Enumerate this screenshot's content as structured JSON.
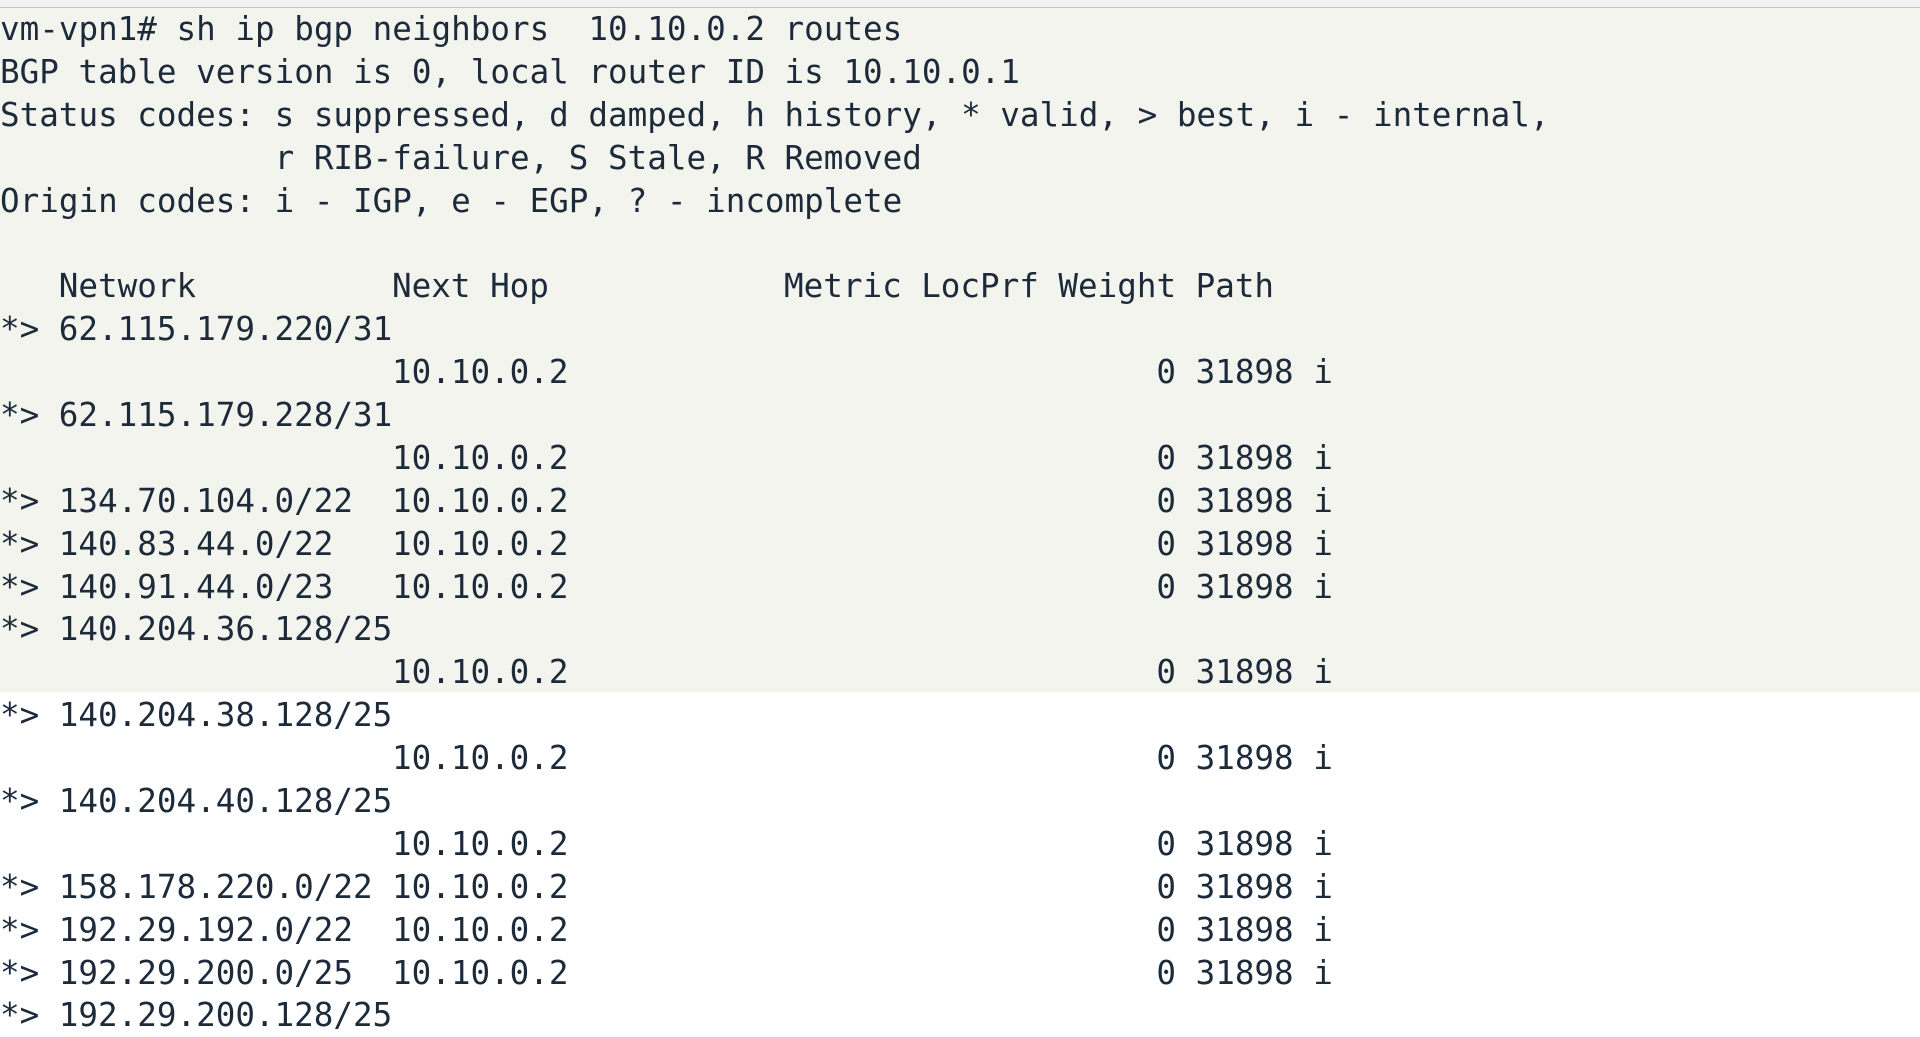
{
  "terminal": {
    "header_lines": [
      "vm-vpn1# sh ip bgp neighbors  10.10.0.2 routes",
      "BGP table version is 0, local router ID is 10.10.0.1",
      "Status codes: s suppressed, d damped, h history, * valid, > best, i - internal,",
      "              r RIB-failure, S Stale, R Removed",
      "Origin codes: i - IGP, e - EGP, ? - incomplete",
      ""
    ],
    "columns": {
      "network": "Network",
      "next_hop": "Next Hop",
      "metric": "Metric",
      "locprf": "LocPrf",
      "weight": "Weight",
      "path": "Path"
    },
    "routes": [
      {
        "status": "*>",
        "network": "62.115.179.220/31",
        "next_hop": "10.10.0.2",
        "weight": "0",
        "path": "31898 i",
        "wrapped": true
      },
      {
        "status": "*>",
        "network": "62.115.179.228/31",
        "next_hop": "10.10.0.2",
        "weight": "0",
        "path": "31898 i",
        "wrapped": true
      },
      {
        "status": "*>",
        "network": "134.70.104.0/22",
        "next_hop": "10.10.0.2",
        "weight": "0",
        "path": "31898 i",
        "wrapped": false
      },
      {
        "status": "*>",
        "network": "140.83.44.0/22",
        "next_hop": "10.10.0.2",
        "weight": "0",
        "path": "31898 i",
        "wrapped": false
      },
      {
        "status": "*>",
        "network": "140.91.44.0/23",
        "next_hop": "10.10.0.2",
        "weight": "0",
        "path": "31898 i",
        "wrapped": false
      },
      {
        "status": "*>",
        "network": "140.204.36.128/25",
        "next_hop": "10.10.0.2",
        "weight": "0",
        "path": "31898 i",
        "wrapped": true
      },
      {
        "status": "*>",
        "network": "140.204.38.128/25",
        "next_hop": "10.10.0.2",
        "weight": "0",
        "path": "31898 i",
        "wrapped": true
      },
      {
        "status": "*>",
        "network": "140.204.40.128/25",
        "next_hop": "10.10.0.2",
        "weight": "0",
        "path": "31898 i",
        "wrapped": true
      },
      {
        "status": "*>",
        "network": "158.178.220.0/22",
        "next_hop": "10.10.0.2",
        "weight": "0",
        "path": "31898 i",
        "wrapped": false
      },
      {
        "status": "*>",
        "network": "192.29.192.0/22",
        "next_hop": "10.10.0.2",
        "weight": "0",
        "path": "31898 i",
        "wrapped": false
      },
      {
        "status": "*>",
        "network": "192.29.200.0/25",
        "next_hop": "10.10.0.2",
        "weight": "0",
        "path": "31898 i",
        "wrapped": false
      },
      {
        "status": "*>",
        "network": "192.29.200.128/25",
        "wrapped": true
      }
    ],
    "colors": {
      "text": "#1c2a3a",
      "highlight_bg": "#f4f4ef",
      "bg": "#ffffff"
    }
  }
}
